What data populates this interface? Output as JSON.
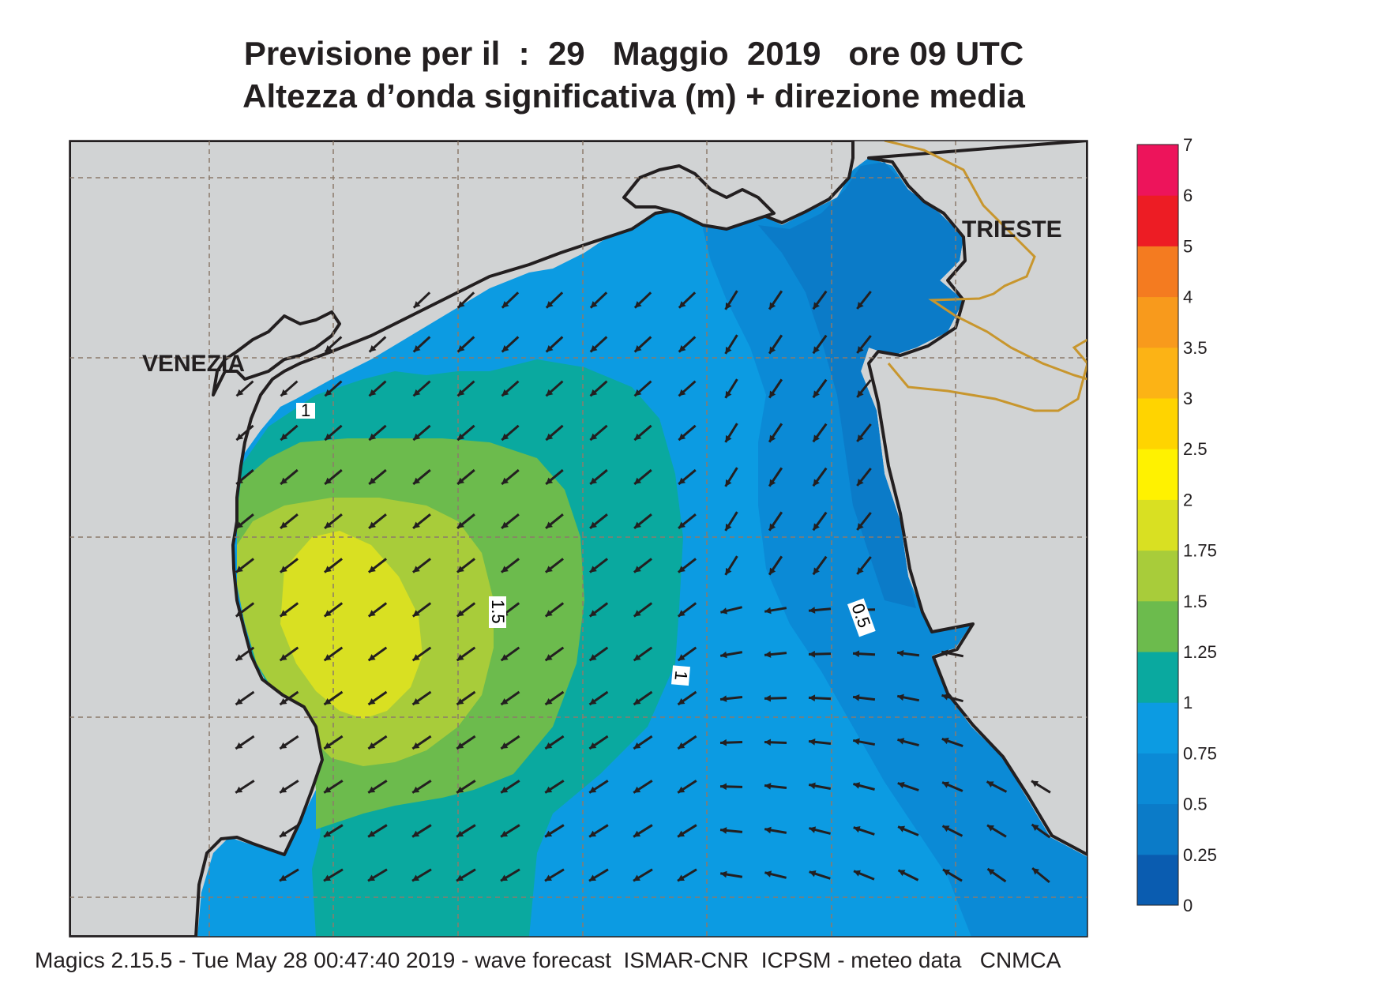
{
  "title": {
    "line1": "Previsione per il  :  29   Maggio  2019   ore 09 UTC",
    "line2": "Altezza d’onda significativa (m) + direzione media"
  },
  "cities": {
    "venezia": "VENEZIA",
    "trieste": "TRIESTE"
  },
  "contour_labels": {
    "c1_north": "1",
    "c15": "1.5",
    "c1_mid": "1",
    "c05": "0.5"
  },
  "legend": {
    "steps": [
      {
        "label": "0",
        "color": "#0a5cb0"
      },
      {
        "label": "0.25",
        "color": "#0b7bc8"
      },
      {
        "label": "0.5",
        "color": "#0b8ad6"
      },
      {
        "label": "0.75",
        "color": "#0c9be2"
      },
      {
        "label": "1",
        "color": "#0aa99f"
      },
      {
        "label": "1.25",
        "color": "#6cbb4d"
      },
      {
        "label": "1.5",
        "color": "#a8cc3a"
      },
      {
        "label": "1.75",
        "color": "#d9e022"
      },
      {
        "label": "2",
        "color": "#fff200"
      },
      {
        "label": "2.5",
        "color": "#ffd400"
      },
      {
        "label": "3",
        "color": "#fcb315"
      },
      {
        "label": "3.5",
        "color": "#f89a1c"
      },
      {
        "label": "4",
        "color": "#f47b20"
      },
      {
        "label": "5",
        "color": "#ed1c24"
      },
      {
        "label": "6",
        "color": "#ed145b"
      },
      {
        "label": "7",
        "color": ""
      }
    ]
  },
  "colors": {
    "land": "#d1d3d4",
    "coastline": "#231f20",
    "border": "#c8962d",
    "grid": "#8c7b6b",
    "arrow": "#231f20"
  },
  "footer": "Magics 2.15.5 - Tue May 28 00:47:40 2019 - wave forecast  ISMAR-CNR  ICPSM - meteo data   CNMCA"
}
